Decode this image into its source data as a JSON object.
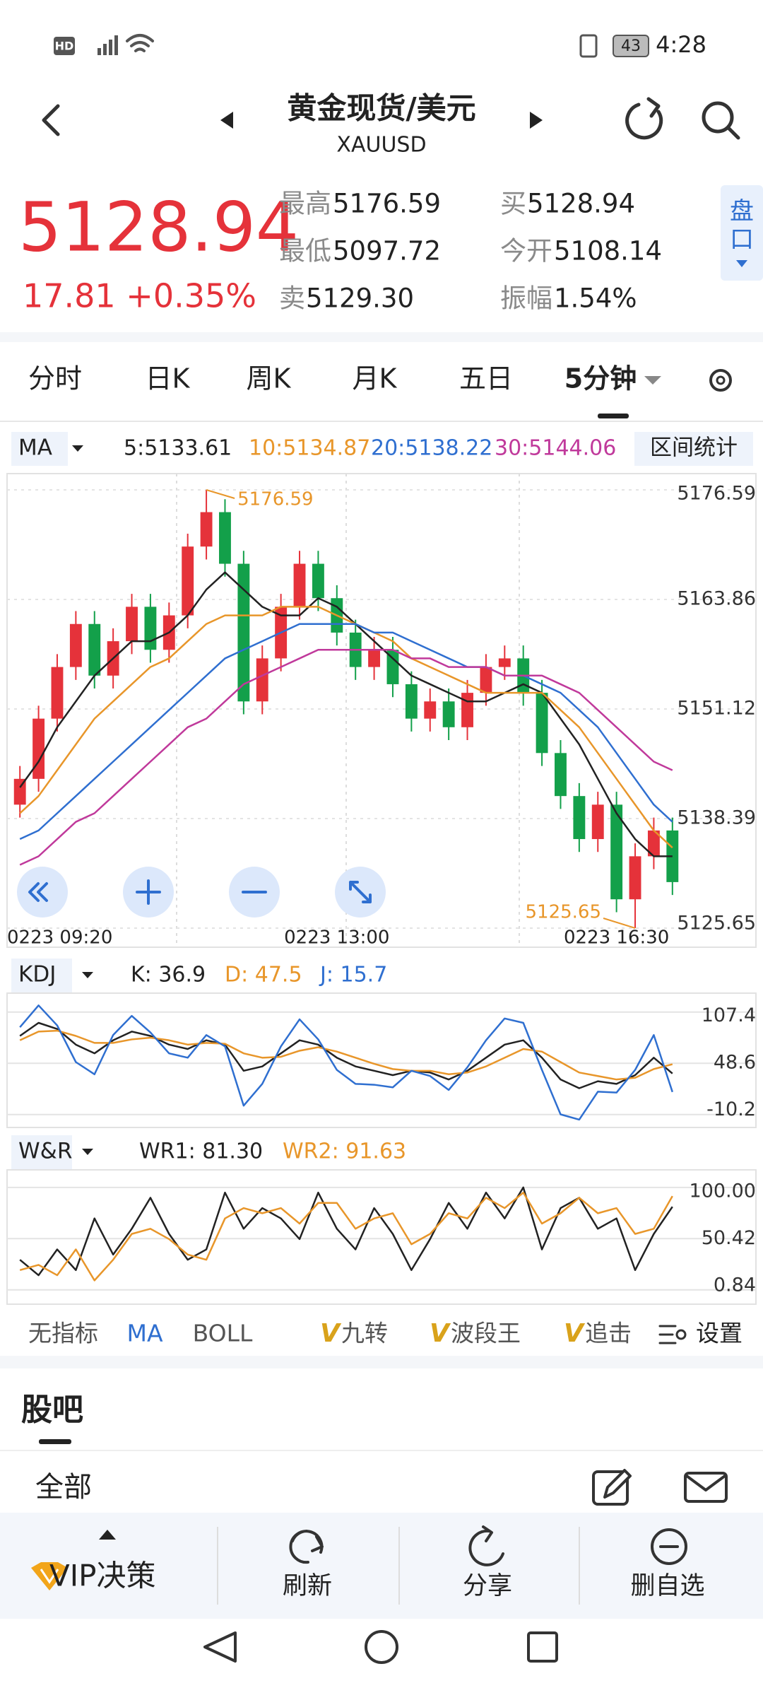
{
  "status": {
    "hd": "HD",
    "battery": "43",
    "time": "4:28"
  },
  "header": {
    "title": "黄金现货/美元",
    "symbol": "XAUUSD"
  },
  "quote": {
    "price": "5128.94",
    "change": "17.81 +0.35%",
    "stats": [
      {
        "label": "最高",
        "value": "5176.59"
      },
      {
        "label": "最低",
        "value": "5097.72"
      },
      {
        "label": "卖",
        "value": "5129.30"
      },
      {
        "label": "买",
        "value": "5128.94"
      },
      {
        "label": "今开",
        "value": "5108.14"
      },
      {
        "label": "振幅",
        "value": "1.54%"
      }
    ],
    "side_tab": "盘口"
  },
  "tabs": [
    "分时",
    "日K",
    "周K",
    "月K",
    "五日",
    "5分钟"
  ],
  "chart_data": [
    {
      "type": "candlestick",
      "indicator": "MA",
      "button": "区间统计",
      "categories": [
        "0223  09:20",
        null,
        null,
        null,
        null,
        null,
        null,
        null,
        null,
        null,
        null,
        null,
        null,
        null,
        null,
        null,
        null,
        "0223  13:00",
        null,
        null,
        null,
        null,
        null,
        null,
        null,
        null,
        null,
        null,
        null,
        null,
        null,
        null,
        "0223  16:30",
        null,
        null,
        null
      ],
      "open": [
        5140,
        5143,
        5150,
        5156,
        5161,
        5155,
        5159,
        5163,
        5158,
        5162,
        5170,
        5174,
        5168,
        5152,
        5157,
        5163,
        5168,
        5164,
        5160,
        5156,
        5158,
        5154,
        5150,
        5152,
        5149,
        5153,
        5156,
        5157,
        5153,
        5146,
        5141,
        5136,
        5140,
        5129,
        5134,
        5137
      ],
      "high": [
        5144.5,
        5151.5,
        5157.5,
        5162.5,
        5162.5,
        5160.5,
        5164.5,
        5164.5,
        5163.5,
        5171.5,
        5176.59,
        5175.5,
        5169.5,
        5158.5,
        5164.5,
        5169.5,
        5169.5,
        5165.5,
        5161.5,
        5159.5,
        5159.5,
        5155.5,
        5153.5,
        5153.5,
        5154.5,
        5157.5,
        5158.5,
        5158.5,
        5154.5,
        5147.5,
        5142.5,
        5141.5,
        5141.5,
        5135.5,
        5138.5,
        5138.5
      ],
      "low": [
        5138.5,
        5141.5,
        5148.5,
        5154.5,
        5153.5,
        5153.5,
        5157.5,
        5156.5,
        5156.5,
        5160.5,
        5168.5,
        5166.5,
        5150.5,
        5150.5,
        5155.5,
        5161.5,
        5162.5,
        5158.5,
        5154.5,
        5154.5,
        5152.5,
        5148.5,
        5148.5,
        5147.5,
        5147.5,
        5151.5,
        5154.5,
        5151.5,
        5144.5,
        5139.5,
        5134.5,
        5134.5,
        5127.5,
        5125.65,
        5132.5,
        5129.5
      ],
      "close": [
        5143,
        5150,
        5156,
        5161,
        5155,
        5159,
        5163,
        5158,
        5162,
        5170,
        5174,
        5168,
        5152,
        5157,
        5163,
        5168,
        5164,
        5160,
        5156,
        5158,
        5154,
        5150,
        5152,
        5149,
        5153,
        5156,
        5157,
        5153,
        5146,
        5141,
        5136,
        5140,
        5129,
        5134,
        5137,
        5131
      ],
      "up_color": "#e5323a",
      "down_color": "#13a04a",
      "series": [
        {
          "name": "5:5133.61",
          "color": "#222222",
          "values": [
            5142,
            5145,
            5149,
            5152,
            5155,
            5157,
            5159,
            5159,
            5160,
            5162,
            5165,
            5167,
            5165,
            5163,
            5162,
            5162,
            5164,
            5163,
            5161,
            5159,
            5157,
            5155,
            5154,
            5153,
            5152,
            5152,
            5153,
            5154,
            5153,
            5150,
            5147,
            5143,
            5139,
            5136,
            5134,
            5134
          ]
        },
        {
          "name": "10:5134.87",
          "color": "#e8962a",
          "values": [
            5139,
            5141,
            5144,
            5147,
            5150,
            5152,
            5154,
            5156,
            5157,
            5159,
            5161,
            5162,
            5162,
            5162,
            5163,
            5163,
            5163,
            5162,
            5161,
            5160,
            5159,
            5157,
            5156,
            5155,
            5154,
            5153,
            5153,
            5153,
            5153,
            5151,
            5149,
            5146,
            5143,
            5140,
            5137,
            5135
          ]
        },
        {
          "name": "20:5138.22",
          "color": "#2f6fd0",
          "values": [
            5136,
            5137,
            5139,
            5141,
            5143,
            5145,
            5147,
            5149,
            5151,
            5153,
            5155,
            5157,
            5158,
            5159,
            5160,
            5161,
            5161,
            5161,
            5161,
            5160,
            5160,
            5159,
            5158,
            5157,
            5156,
            5156,
            5155,
            5155,
            5154,
            5153,
            5151,
            5149,
            5146,
            5143,
            5140,
            5138
          ]
        },
        {
          "name": "30:5144.06",
          "color": "#c0399b",
          "values": [
            5133,
            5134,
            5136,
            5138,
            5139,
            5141,
            5143,
            5145,
            5147,
            5149,
            5150,
            5152,
            5154,
            5155,
            5156,
            5157,
            5158,
            5158,
            5158,
            5158,
            5158,
            5157,
            5157,
            5156,
            5156,
            5156,
            5155,
            5155,
            5155,
            5154,
            5153,
            5151,
            5149,
            5147,
            5145,
            5144
          ]
        }
      ],
      "ylim": [
        5125.65,
        5176.59
      ],
      "yticks": [
        5176.59,
        5163.86,
        5151.12,
        5138.39,
        5125.65
      ],
      "high_label": 5176.59,
      "low_label": 5125.65,
      "annotation_color": "#e8962a",
      "grid": true
    },
    {
      "type": "line",
      "indicator": "KDJ",
      "series": [
        {
          "name": "K: 36.9",
          "color": "#222222",
          "values": [
            80,
            95,
            88,
            70,
            60,
            75,
            85,
            80,
            70,
            65,
            75,
            70,
            40,
            45,
            60,
            75,
            70,
            55,
            45,
            40,
            35,
            40,
            38,
            30,
            40,
            55,
            70,
            75,
            55,
            30,
            20,
            28,
            25,
            35,
            55,
            36.9
          ]
        },
        {
          "name": "D: 47.5",
          "color": "#e8962a",
          "values": [
            75,
            85,
            86,
            80,
            72,
            72,
            76,
            78,
            75,
            70,
            72,
            71,
            60,
            55,
            56,
            63,
            67,
            62,
            55,
            48,
            42,
            40,
            40,
            36,
            38,
            45,
            55,
            65,
            62,
            50,
            38,
            34,
            30,
            32,
            42,
            47.5
          ]
        },
        {
          "name": "J: 15.7",
          "color": "#2f6fd0",
          "values": [
            90,
            115,
            92,
            50,
            36,
            81,
            103,
            84,
            60,
            55,
            81,
            68,
            0,
            25,
            68,
            99,
            76,
            41,
            25,
            24,
            21,
            40,
            34,
            18,
            44,
            75,
            100,
            95,
            41,
            -10,
            -16,
            16,
            15,
            41,
            81,
            15.7
          ]
        }
      ],
      "ylim": [
        -25,
        125
      ],
      "yticks": [
        107.4,
        48.6,
        -10.2
      ]
    },
    {
      "type": "line",
      "indicator": "W&R",
      "series": [
        {
          "name": "WR1: 81.30",
          "color": "#222222",
          "values": [
            30,
            15,
            40,
            20,
            70,
            35,
            60,
            90,
            55,
            30,
            40,
            95,
            60,
            80,
            70,
            50,
            95,
            60,
            40,
            80,
            55,
            20,
            50,
            85,
            60,
            95,
            70,
            100,
            40,
            80,
            90,
            60,
            70,
            20,
            55,
            81.3
          ]
        },
        {
          "name": "WR2: 91.63",
          "color": "#e8962a",
          "values": [
            20,
            25,
            15,
            40,
            10,
            30,
            55,
            60,
            50,
            35,
            30,
            70,
            80,
            75,
            80,
            65,
            85,
            85,
            60,
            70,
            75,
            45,
            55,
            75,
            70,
            90,
            80,
            95,
            65,
            75,
            90,
            75,
            80,
            55,
            60,
            91.63
          ]
        }
      ],
      "ylim": [
        -13,
        117
      ],
      "yticks": [
        {
          "value": 100,
          "label": "100.00"
        },
        50.42,
        0.84
      ]
    }
  ],
  "indicators": [
    "无指标",
    "MA",
    "BOLL",
    "九转",
    "波段王",
    "追击"
  ],
  "vip_badge": "V",
  "settings": "设置",
  "community": {
    "title": "股吧",
    "filter": "全部"
  },
  "toolbar": [
    "VIP决策",
    "刷新",
    "分享",
    "删自选"
  ]
}
